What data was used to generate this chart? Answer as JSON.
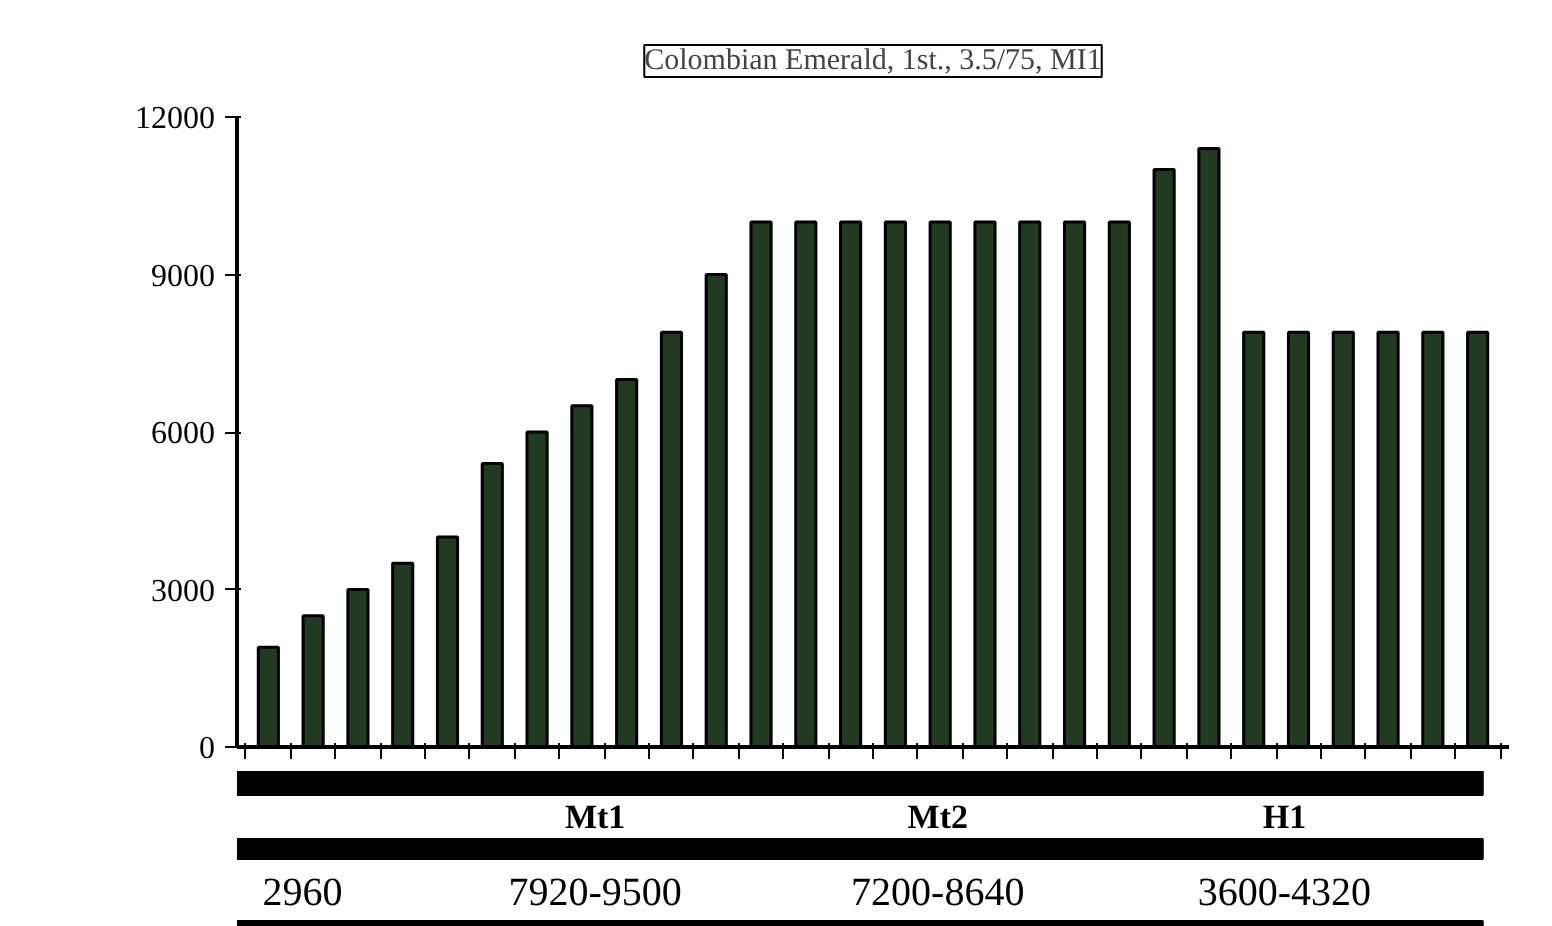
{
  "chart_data": {
    "type": "bar",
    "title": "Colombian Emerald, 1st., 3.5/75, MI1",
    "categories": [
      null,
      null,
      null,
      null,
      null,
      null,
      null,
      null,
      null,
      null,
      null,
      null,
      null,
      null,
      null,
      null,
      null,
      null,
      null,
      null,
      null,
      null,
      null,
      null,
      null,
      null,
      null,
      null
    ],
    "values": [
      1900,
      2500,
      3000,
      3500,
      4000,
      5400,
      6000,
      6500,
      7000,
      7900,
      9000,
      10000,
      10000,
      10000,
      10000,
      10000,
      10000,
      10000,
      10000,
      10000,
      11000,
      11400,
      7900,
      7900,
      7900,
      7900,
      7900,
      7900
    ],
    "color": "#223a22",
    "ylim": [
      0,
      12000
    ],
    "yticks": [
      0,
      3000,
      6000,
      9000,
      12000
    ],
    "grid": false,
    "tick_labels": "y",
    "annotations": [
      "Mt1",
      "Mt2",
      "H1",
      "2960",
      "7920-9500",
      "7200-8640",
      "3600-4320"
    ]
  }
}
